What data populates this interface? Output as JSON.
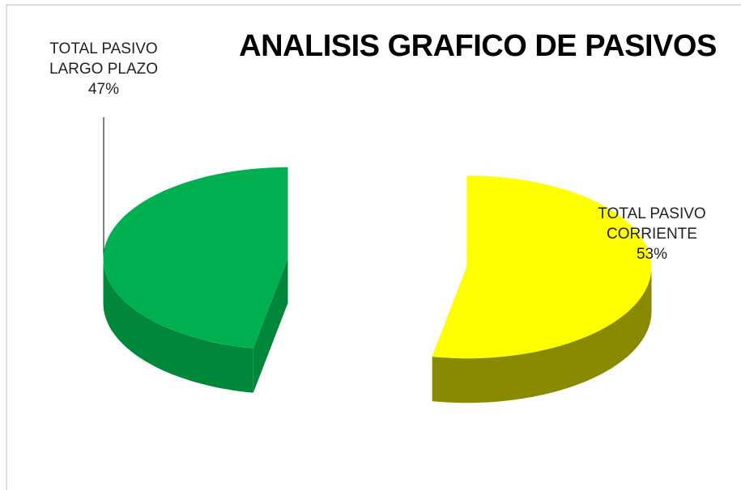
{
  "chart_data": {
    "type": "pie3d",
    "title": "ANALISIS GRAFICO DE PASIVOS",
    "categories": [
      "TOTAL PASIVO CORRIENTE",
      "TOTAL PASIVO LARGO PLAZO"
    ],
    "values": [
      53,
      47
    ],
    "value_labels": [
      "53%",
      "47%"
    ],
    "colors": [
      "#ffff00",
      "#00b050"
    ],
    "side_colors": [
      "#8a8a00",
      "#00873c"
    ]
  }
}
